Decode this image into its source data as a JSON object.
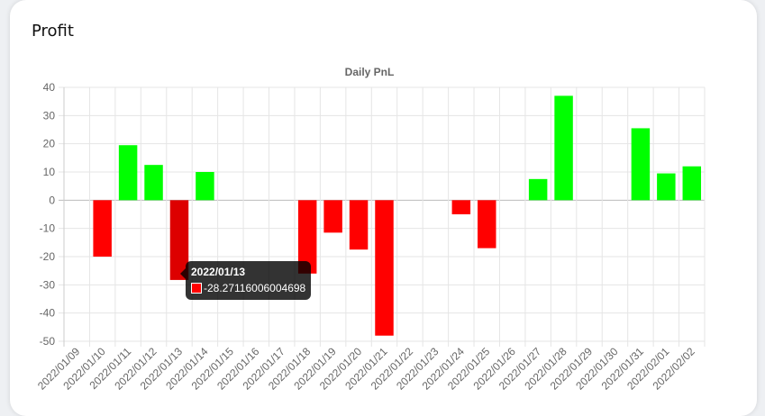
{
  "card": {
    "title": "Profit"
  },
  "chart_data": {
    "type": "bar",
    "title": "Daily PnL",
    "xlabel": "",
    "ylabel": "",
    "ylim": [
      -50,
      40
    ],
    "yticks": [
      40,
      30,
      20,
      10,
      0,
      -10,
      -20,
      -30,
      -40,
      -50
    ],
    "grid": true,
    "categories": [
      "2022/01/09",
      "2022/01/10",
      "2022/01/11",
      "2022/01/12",
      "2022/01/13",
      "2022/01/14",
      "2022/01/15",
      "2022/01/16",
      "2022/01/17",
      "2022/01/18",
      "2022/01/19",
      "2022/01/20",
      "2022/01/21",
      "2022/01/22",
      "2022/01/23",
      "2022/01/24",
      "2022/01/25",
      "2022/01/26",
      "2022/01/27",
      "2022/01/28",
      "2022/01/29",
      "2022/01/30",
      "2022/01/31",
      "2022/02/01",
      "2022/02/02"
    ],
    "values": [
      null,
      -20,
      19.5,
      12.5,
      -28.27116006004698,
      10,
      null,
      null,
      null,
      -26,
      -11.5,
      -17.5,
      -48,
      null,
      null,
      -5,
      -17,
      null,
      7.5,
      37,
      null,
      null,
      25.5,
      9.5,
      12
    ],
    "colors": {
      "positive": "#00ff00",
      "negative": "#ff0000",
      "hovered_negative": "#dd0000"
    },
    "hovered_index": 4
  },
  "tooltip": {
    "title": "2022/01/13",
    "value": "-28.27116006004698",
    "swatch_color": "#ff0000"
  }
}
